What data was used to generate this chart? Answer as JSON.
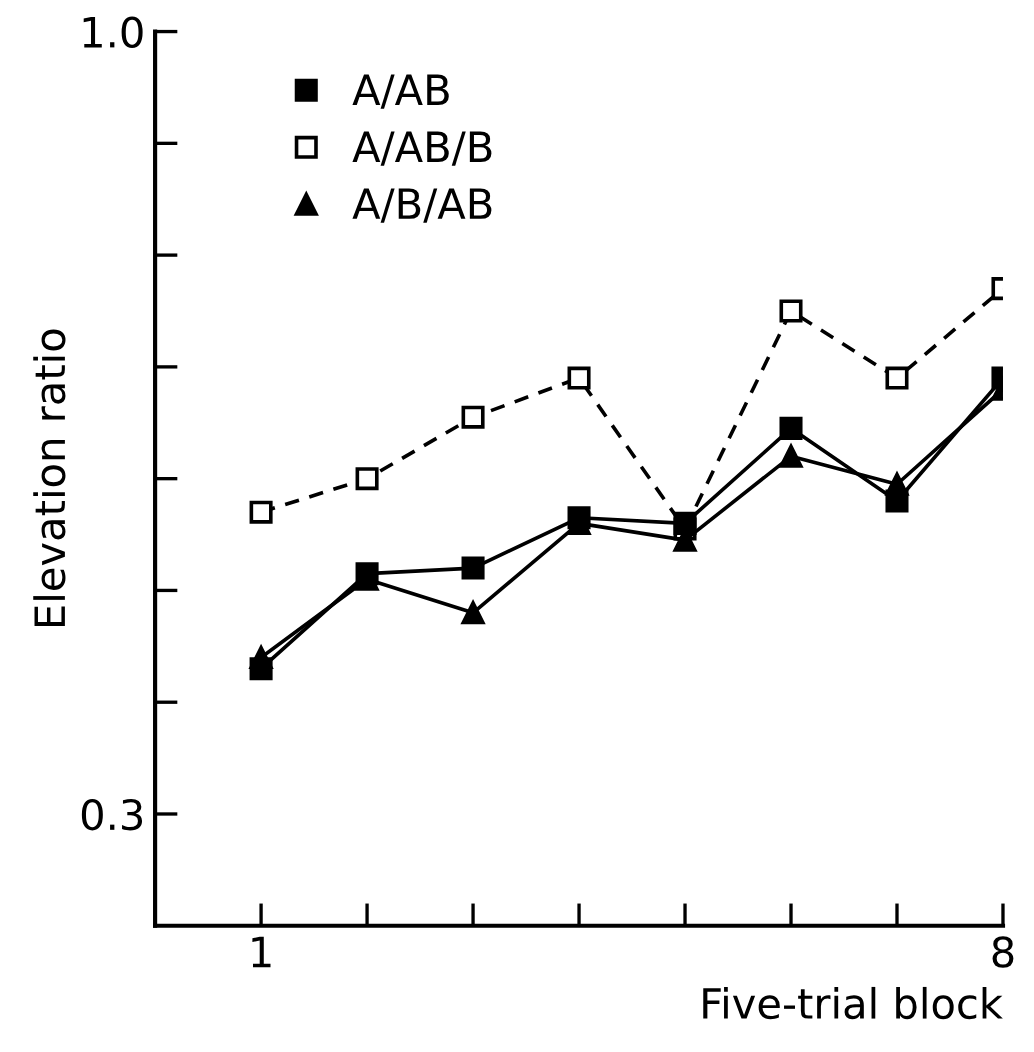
{
  "chart_data": {
    "type": "line",
    "xlabel": "Five-trial block",
    "ylabel": "Elevation ratio",
    "x": [
      1,
      2,
      3,
      4,
      5,
      6,
      7,
      8
    ],
    "series": [
      {
        "name": "A/AB",
        "color": "#000000",
        "marker": "square",
        "line_style": "solid",
        "values": [
          0.43,
          0.515,
          0.52,
          0.565,
          0.56,
          0.645,
          0.58,
          0.69
        ]
      },
      {
        "name": "A/AB/B",
        "color": "#000000",
        "marker": "square",
        "line_style": "dashed",
        "values": [
          0.57,
          0.6,
          0.655,
          0.69,
          0.555,
          0.75,
          0.69,
          0.77
        ]
      },
      {
        "name": "A/B/AB",
        "color": "#000000",
        "marker": "triangle",
        "line_style": "solid",
        "values": [
          0.44,
          0.51,
          0.48,
          0.56,
          0.545,
          0.62,
          0.595,
          0.68
        ]
      }
    ],
    "xlim": [
      0,
      8
    ],
    "ylim": [
      0.2,
      1.0
    ],
    "xticks": [
      {
        "value": 1,
        "label": "1"
      },
      {
        "value": 2,
        "label": null
      },
      {
        "value": 3,
        "label": null
      },
      {
        "value": 4,
        "label": null
      },
      {
        "value": 5,
        "label": null
      },
      {
        "value": 6,
        "label": null
      },
      {
        "value": 7,
        "label": null
      },
      {
        "value": 8,
        "label": "8"
      }
    ],
    "yticks": [
      {
        "value": 0.3,
        "label": "0.3"
      },
      {
        "value": 0.4,
        "label": null
      },
      {
        "value": 0.5,
        "label": null
      },
      {
        "value": 0.6,
        "label": null
      },
      {
        "value": 0.7,
        "label": null
      },
      {
        "value": 0.8,
        "label": null
      },
      {
        "value": 0.9,
        "label": null
      },
      {
        "value": 1.0,
        "label": "1.0"
      }
    ],
    "grid": false,
    "legend": "top left"
  }
}
